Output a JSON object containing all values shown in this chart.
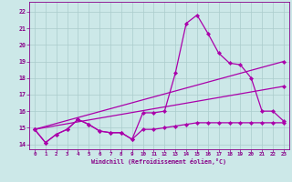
{
  "xlabel": "Windchill (Refroidissement éolien,°C)",
  "bg_color": "#cce8e8",
  "grid_color": "#aacccc",
  "line_color": "#aa00aa",
  "xlim": [
    -0.5,
    23.5
  ],
  "ylim": [
    13.7,
    22.6
  ],
  "xticks": [
    0,
    1,
    2,
    3,
    4,
    5,
    6,
    7,
    8,
    9,
    10,
    11,
    12,
    13,
    14,
    15,
    16,
    17,
    18,
    19,
    20,
    21,
    22,
    23
  ],
  "yticks": [
    14,
    15,
    16,
    17,
    18,
    19,
    20,
    21,
    22
  ],
  "line1_x": [
    0,
    1,
    2,
    3,
    4,
    5,
    6,
    7,
    8,
    9,
    10,
    11,
    12,
    13,
    14,
    15,
    16,
    17,
    18,
    19,
    20,
    21,
    22,
    23
  ],
  "line1_y": [
    14.9,
    14.1,
    14.6,
    14.9,
    15.5,
    15.2,
    14.8,
    14.7,
    14.7,
    14.3,
    15.9,
    15.9,
    16.0,
    18.3,
    21.3,
    21.8,
    20.7,
    19.5,
    18.9,
    18.8,
    18.0,
    16.0,
    16.0,
    15.4
  ],
  "line2_x": [
    0,
    1,
    2,
    3,
    4,
    5,
    6,
    7,
    8,
    9,
    10,
    11,
    12,
    13,
    14,
    15,
    16,
    17,
    18,
    19,
    20,
    21,
    22,
    23
  ],
  "line2_y": [
    14.9,
    14.1,
    14.6,
    14.9,
    15.5,
    15.2,
    14.8,
    14.7,
    14.7,
    14.3,
    14.9,
    14.9,
    15.0,
    15.1,
    15.2,
    15.3,
    15.3,
    15.3,
    15.3,
    15.3,
    15.3,
    15.3,
    15.3,
    15.3
  ],
  "line3_x": [
    0,
    23
  ],
  "line3_y": [
    14.9,
    19.0
  ],
  "line4_x": [
    0,
    23
  ],
  "line4_y": [
    14.9,
    17.5
  ]
}
